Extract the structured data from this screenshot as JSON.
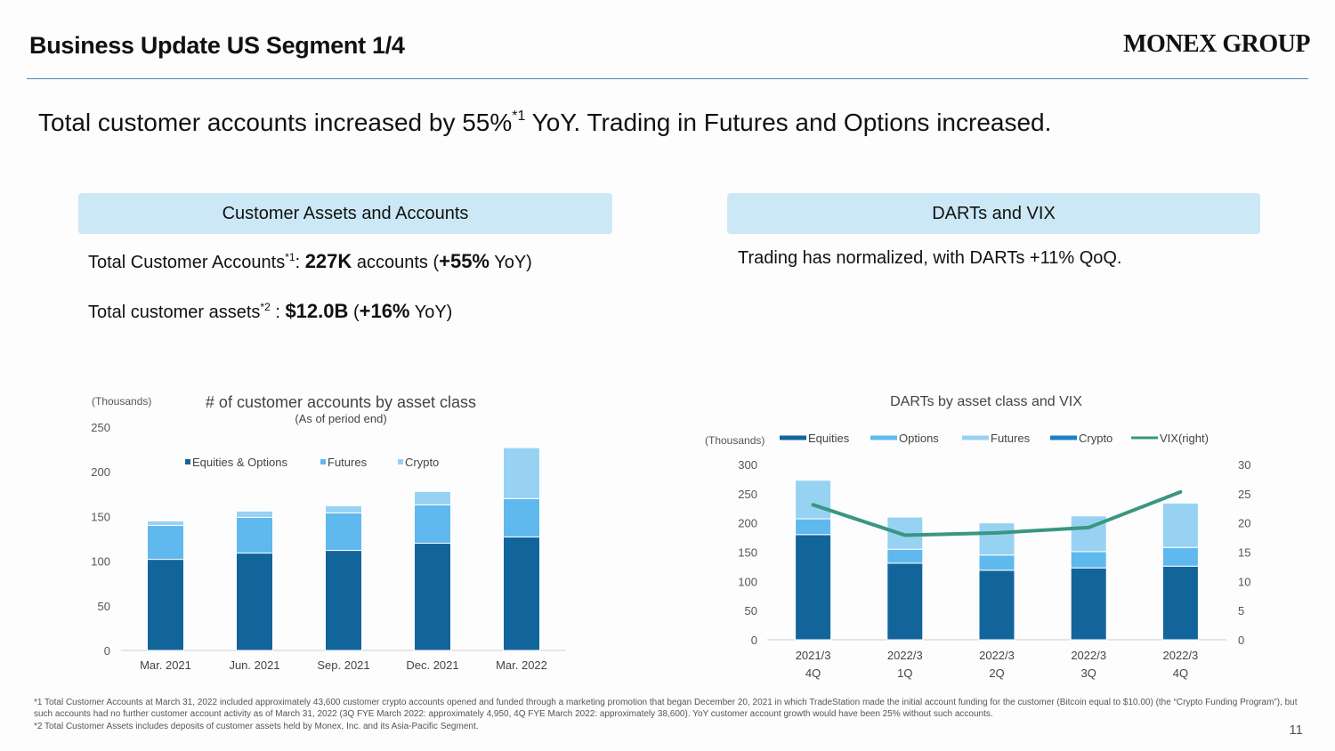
{
  "header": {
    "title": "Business Update US Segment 1/4",
    "logo": "MONEX GROUP"
  },
  "headline": {
    "pre": "Total customer accounts increased by 55%",
    "sup": "*1",
    "post": " YoY.  Trading in Futures and Options increased."
  },
  "left_section": {
    "box_label": "Customer Assets and Accounts",
    "bullet1": {
      "label": "Total Customer Accounts",
      "sup": "*1",
      "sep": ": ",
      "value": "227K",
      "mid": " accounts (",
      "change": "+55%",
      "tail": " YoY)"
    },
    "bullet2": {
      "label": "Total customer assets",
      "sup": "*2",
      "sep": " : ",
      "value": "$12.0B",
      "mid": " (",
      "change": "+16%",
      "tail": " YoY)"
    }
  },
  "right_section": {
    "box_label": "DARTs and VIX",
    "bullet1": "Trading has normalized, with DARTs +11% QoQ."
  },
  "colors": {
    "dark_blue": "#12659a",
    "mid_blue": "#5fb9ee",
    "light_blue": "#97d2f3",
    "crypto_blue": "#1a80c4",
    "vix_green": "#3a9680",
    "section_box": "#cce8f7",
    "rule": "#4a86b4"
  },
  "chart_data": [
    {
      "type": "bar",
      "stacked": true,
      "title": "# of customer accounts by asset class",
      "subtitle": "(As of period end)",
      "unit_label": "(Thousands)",
      "categories": [
        "Mar. 2021",
        "Jun. 2021",
        "Sep. 2021",
        "Dec. 2021",
        "Mar. 2022"
      ],
      "series": [
        {
          "name": "Equities & Options",
          "color": "#12659a",
          "values": [
            102,
            109,
            112,
            120,
            127
          ]
        },
        {
          "name": "Futures",
          "color": "#5fb9ee",
          "values": [
            38,
            40,
            42,
            43,
            43
          ]
        },
        {
          "name": "Crypto",
          "color": "#97d2f3",
          "values": [
            5,
            7,
            8,
            15,
            57
          ]
        }
      ],
      "ylim": [
        0,
        250
      ],
      "yticks": [
        0,
        50,
        100,
        150,
        200,
        250
      ],
      "grid": false,
      "legend": "top"
    },
    {
      "type": "bar",
      "stacked": true,
      "title": "DARTs by asset class and VIX",
      "unit_label": "(Thousands)",
      "categories": [
        [
          "2021/3",
          "4Q"
        ],
        [
          "2022/3",
          "1Q"
        ],
        [
          "2022/3",
          "2Q"
        ],
        [
          "2022/3",
          "3Q"
        ],
        [
          "2022/3",
          "4Q"
        ]
      ],
      "series": [
        {
          "name": "Equities",
          "color": "#12659a",
          "values": [
            180,
            131,
            119,
            123,
            126
          ]
        },
        {
          "name": "Options",
          "color": "#5fb9ee",
          "values": [
            27,
            24,
            26,
            28,
            32
          ]
        },
        {
          "name": "Futures",
          "color": "#97d2f3",
          "values": [
            66,
            55,
            55,
            61,
            76
          ]
        },
        {
          "name": "Crypto",
          "color": "#1a80c4",
          "values": [
            0,
            0,
            0,
            0,
            0
          ]
        }
      ],
      "line_series": {
        "name": "VIX(right)",
        "color": "#3a9680",
        "axis": "right",
        "values": [
          23.1,
          17.9,
          18.3,
          19.2,
          25.3
        ]
      },
      "ylim": [
        0,
        300
      ],
      "yticks": [
        0,
        50,
        100,
        150,
        200,
        250,
        300
      ],
      "y2lim": [
        0,
        30
      ],
      "y2ticks": [
        0,
        5,
        10,
        15,
        20,
        25,
        30
      ],
      "grid": false,
      "legend": "top"
    }
  ],
  "footnotes": [
    "*1 Total Customer Accounts at March 31, 2022 included approximately 43,600 customer crypto accounts opened and funded through a marketing promotion that began December 20, 2021 in which TradeStation made the initial account funding for the customer (Bitcoin equal to $10.00) (the “Crypto Funding Program”), but such accounts had no further customer account activity as of March 31, 2022 (3Q FYE March 2022: approximately 4,950, 4Q FYE March 2022: approximately 38,600).  YoY customer account growth would have been 25% without such accounts.",
    "*2 Total Customer Assets includes deposits of customer assets held by Monex, Inc. and its Asia-Pacific Segment."
  ],
  "page_number": "11"
}
